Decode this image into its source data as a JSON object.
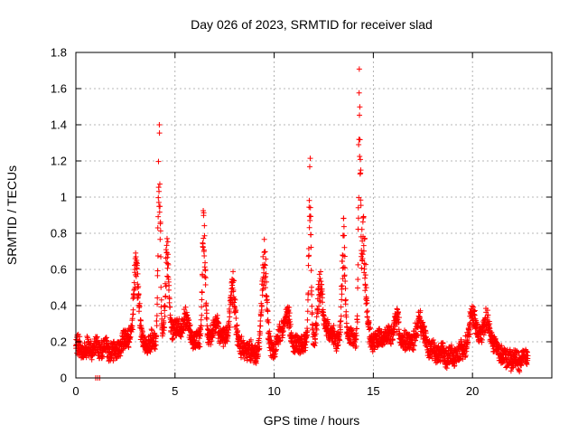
{
  "chart_data": {
    "type": "scatter",
    "title": "Day 026 of 2023, SRMTID for receiver slad",
    "xlabel": "GPS time / hours",
    "ylabel": "SRMTID / TECUs",
    "xlim": [
      0,
      24
    ],
    "ylim": [
      0,
      1.8
    ],
    "xticks": [
      0,
      5,
      10,
      15,
      20
    ],
    "xtick_labels": [
      "0",
      "5",
      "10",
      "15",
      "20"
    ],
    "yticks": [
      0,
      0.2,
      0.4,
      0.6,
      0.8,
      1.0,
      1.2,
      1.4,
      1.6,
      1.8
    ],
    "ytick_labels": [
      "0",
      "0.2",
      "0.4",
      "0.6",
      "0.8",
      "1",
      "1.2",
      "1.4",
      "1.6",
      "1.8"
    ],
    "grid": true,
    "marker": "+",
    "color": "#ff0000",
    "x_step_hours": 0.0083,
    "x_end_hours": 22.8,
    "baseline_anchors": [
      [
        0.0,
        0.18
      ],
      [
        0.5,
        0.15
      ],
      [
        1.0,
        0.17
      ],
      [
        1.5,
        0.16
      ],
      [
        2.0,
        0.14
      ],
      [
        2.5,
        0.22
      ],
      [
        3.0,
        0.22
      ],
      [
        3.5,
        0.18
      ],
      [
        4.5,
        0.25
      ],
      [
        5.0,
        0.28
      ],
      [
        5.5,
        0.22
      ],
      [
        6.0,
        0.2
      ],
      [
        7.0,
        0.25
      ],
      [
        7.5,
        0.22
      ],
      [
        8.5,
        0.15
      ],
      [
        9.0,
        0.14
      ],
      [
        10.0,
        0.16
      ],
      [
        10.5,
        0.3
      ],
      [
        11.0,
        0.18
      ],
      [
        12.0,
        0.2
      ],
      [
        12.5,
        0.3
      ],
      [
        13.0,
        0.22
      ],
      [
        14.0,
        0.22
      ],
      [
        15.0,
        0.2
      ],
      [
        15.5,
        0.22
      ],
      [
        16.0,
        0.25
      ],
      [
        16.5,
        0.2
      ],
      [
        17.0,
        0.2
      ],
      [
        17.5,
        0.24
      ],
      [
        18.0,
        0.14
      ],
      [
        19.0,
        0.12
      ],
      [
        19.5,
        0.15
      ],
      [
        20.0,
        0.25
      ],
      [
        21.0,
        0.2
      ],
      [
        21.5,
        0.12
      ],
      [
        22.0,
        0.1
      ],
      [
        22.8,
        0.12
      ]
    ],
    "bursts": [
      {
        "center_hours": 3.05,
        "width_hours": 0.12,
        "peak": 0.74
      },
      {
        "center_hours": 4.2,
        "width_hours": 0.06,
        "peak": 1.44
      },
      {
        "center_hours": 4.6,
        "width_hours": 0.08,
        "peak": 0.8
      },
      {
        "center_hours": 5.55,
        "width_hours": 0.15,
        "peak": 0.36
      },
      {
        "center_hours": 6.45,
        "width_hours": 0.07,
        "peak": 0.98
      },
      {
        "center_hours": 7.1,
        "width_hours": 0.12,
        "peak": 0.32
      },
      {
        "center_hours": 7.9,
        "width_hours": 0.15,
        "peak": 0.55
      },
      {
        "center_hours": 9.5,
        "width_hours": 0.12,
        "peak": 0.78
      },
      {
        "center_hours": 10.7,
        "width_hours": 0.1,
        "peak": 0.38
      },
      {
        "center_hours": 11.8,
        "width_hours": 0.06,
        "peak": 1.27
      },
      {
        "center_hours": 12.3,
        "width_hours": 0.1,
        "peak": 0.6
      },
      {
        "center_hours": 13.5,
        "width_hours": 0.08,
        "peak": 0.88
      },
      {
        "center_hours": 14.3,
        "width_hours": 0.05,
        "peak": 1.67
      },
      {
        "center_hours": 14.5,
        "width_hours": 0.12,
        "peak": 0.9
      },
      {
        "center_hours": 16.2,
        "width_hours": 0.1,
        "peak": 0.36
      },
      {
        "center_hours": 17.3,
        "width_hours": 0.1,
        "peak": 0.36
      },
      {
        "center_hours": 20.0,
        "width_hours": 0.12,
        "peak": 0.4
      },
      {
        "center_hours": 20.7,
        "width_hours": 0.15,
        "peak": 0.34
      }
    ],
    "near_zero_points": [
      {
        "x_hours": 1.0,
        "y": 0.0
      },
      {
        "x_hours": 1.1,
        "y": 0.0
      },
      {
        "x_hours": 1.2,
        "y": 0.0
      }
    ]
  }
}
